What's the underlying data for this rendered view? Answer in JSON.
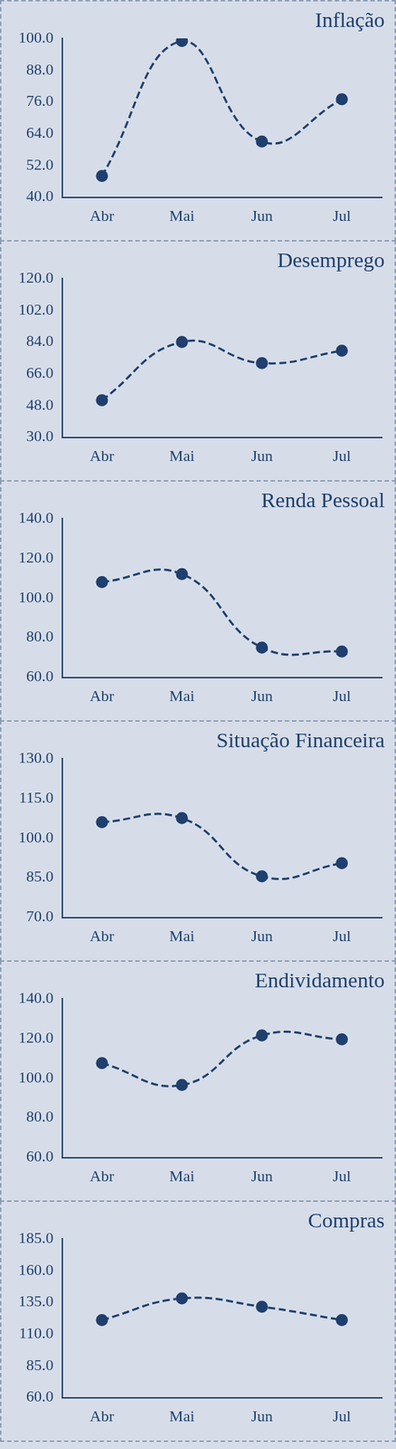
{
  "chart_data": [
    {
      "type": "line",
      "title": "Inflação",
      "categories": [
        "Abr",
        "Mai",
        "Jun",
        "Jul"
      ],
      "values": [
        48,
        99,
        61,
        77
      ],
      "color": "#1f3f6e",
      "marker": "circle",
      "line_style": "dashed",
      "grid": false,
      "ylim": [
        40,
        100
      ],
      "yticks": [
        {
          "value": 40,
          "label": "40.0"
        },
        {
          "value": 52,
          "label": "52.0"
        },
        {
          "value": 64,
          "label": "64.0"
        },
        {
          "value": 76,
          "label": "76.0"
        },
        {
          "value": 88,
          "label": "88.0"
        },
        {
          "value": 100,
          "label": "100.0"
        }
      ]
    },
    {
      "type": "line",
      "title": "Desemprego",
      "categories": [
        "Abr",
        "Mai",
        "Jun",
        "Jul"
      ],
      "values": [
        51,
        84,
        72,
        79
      ],
      "color": "#1f3f6e",
      "marker": "circle",
      "line_style": "dashed",
      "grid": false,
      "ylim": [
        30,
        120
      ],
      "yticks": [
        {
          "value": 30,
          "label": "30.0"
        },
        {
          "value": 48,
          "label": "48.0"
        },
        {
          "value": 66,
          "label": "66.0"
        },
        {
          "value": 84,
          "label": "84.0"
        },
        {
          "value": 102,
          "label": "102.0"
        },
        {
          "value": 120,
          "label": "120.0"
        }
      ]
    },
    {
      "type": "line",
      "title": "Renda Pessoal",
      "categories": [
        "Abr",
        "Mai",
        "Jun",
        "Jul"
      ],
      "values": [
        108,
        112,
        75,
        73
      ],
      "color": "#1f3f6e",
      "marker": "circle",
      "line_style": "dashed",
      "grid": false,
      "ylim": [
        60,
        140
      ],
      "yticks": [
        {
          "value": 60,
          "label": "60.0"
        },
        {
          "value": 80,
          "label": "80.0"
        },
        {
          "value": 100,
          "label": "100.0"
        },
        {
          "value": 120,
          "label": "120.0"
        },
        {
          "value": 140,
          "label": "140.0"
        }
      ]
    },
    {
      "type": "line",
      "title": "Situação Financeira",
      "categories": [
        "Abr",
        "Mai",
        "Jun",
        "Jul"
      ],
      "values": [
        106,
        107.5,
        85.5,
        90.5
      ],
      "color": "#1f3f6e",
      "marker": "circle",
      "line_style": "dashed",
      "grid": false,
      "ylim": [
        70,
        130
      ],
      "yticks": [
        {
          "value": 70,
          "label": "70.0"
        },
        {
          "value": 85,
          "label": "85.0"
        },
        {
          "value": 100,
          "label": "100.0"
        },
        {
          "value": 115,
          "label": "115.0"
        },
        {
          "value": 130,
          "label": "130.0"
        }
      ]
    },
    {
      "type": "line",
      "title": "Endividamento",
      "categories": [
        "Abr",
        "Mai",
        "Jun",
        "Jul"
      ],
      "values": [
        107.5,
        96.5,
        121.5,
        119.5
      ],
      "color": "#1f3f6e",
      "marker": "circle",
      "line_style": "dashed",
      "grid": false,
      "ylim": [
        60,
        140
      ],
      "yticks": [
        {
          "value": 60,
          "label": "60.0"
        },
        {
          "value": 80,
          "label": "80.0"
        },
        {
          "value": 100,
          "label": "100.0"
        },
        {
          "value": 120,
          "label": "120.0"
        },
        {
          "value": 140,
          "label": "140.0"
        }
      ]
    },
    {
      "type": "line",
      "title": "Compras",
      "categories": [
        "Abr",
        "Mai",
        "Jun",
        "Jul"
      ],
      "values": [
        121,
        138,
        131.5,
        121
      ],
      "color": "#1f3f6e",
      "marker": "circle",
      "line_style": "dashed",
      "grid": false,
      "ylim": [
        60,
        185
      ],
      "yticks": [
        {
          "value": 60,
          "label": "60.0"
        },
        {
          "value": 85,
          "label": "85.0"
        },
        {
          "value": 110,
          "label": "110.0"
        },
        {
          "value": 135,
          "label": "135.0"
        },
        {
          "value": 160,
          "label": "160.0"
        },
        {
          "value": 185,
          "label": "185.0"
        }
      ]
    }
  ]
}
